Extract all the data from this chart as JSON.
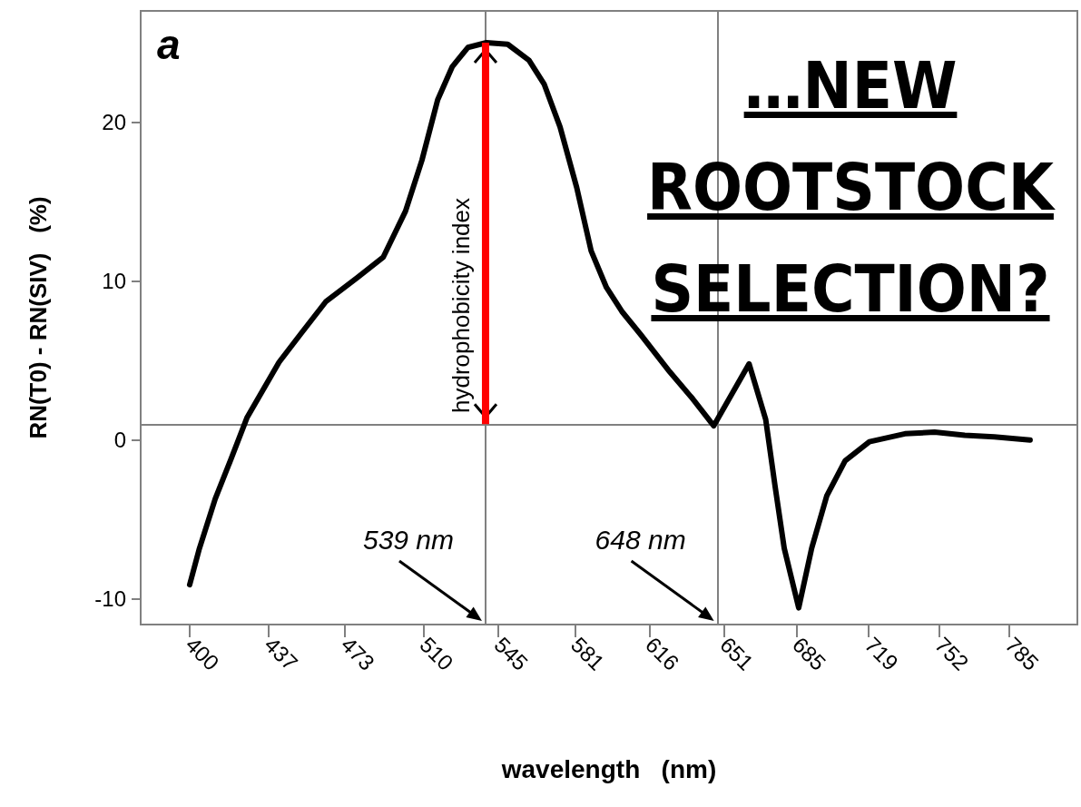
{
  "chart_data": {
    "type": "line",
    "xlabel": "wavelength   (nm)",
    "ylabel": "RN(T0) - RN(SIV)   (%)",
    "annotations": [
      "a",
      "…NEW\nROOTSTOCK\nSELECTION?",
      {
        "text": "hydrophobicity index",
        "x": 539,
        "y": 25
      }
    ],
    "x": [
      400,
      404.4,
      412,
      419.4,
      426.9,
      442,
      452.3,
      463.9,
      478.6,
      490.9,
      501.4,
      509.1,
      516.5,
      523.4,
      530.7,
      539.4,
      549.4,
      559.4,
      566.5,
      574,
      581.8,
      588.6,
      595.8,
      603,
      612.1,
      625.5,
      636.3,
      646.2,
      662.8,
      670.6,
      675,
      679.3,
      686.1,
      692.2,
      699.3,
      707.9,
      719.3,
      736,
      749.9,
      764.1,
      778,
      794.8
    ],
    "series": [
      {
        "color": "#000000",
        "values": [
          -9.1,
          -6.9,
          -3.7,
          -1.2,
          1.4,
          4.9,
          6.7,
          8.7,
          10.2,
          11.5,
          14.4,
          17.6,
          21.4,
          23.5,
          24.7,
          25.0,
          24.9,
          23.9,
          22.4,
          19.7,
          15.9,
          11.9,
          9.6,
          8.1,
          6.6,
          4.3,
          2.6,
          0.9,
          4.8,
          1.3,
          -2.9,
          -6.8,
          -10.55,
          -6.8,
          -3.5,
          -1.3,
          -0.1,
          0.4,
          0.5,
          0.3,
          0.2,
          0.0
        ]
      }
    ],
    "xlim": [
      377,
      817
    ],
    "xticks": [
      400,
      437,
      473,
      510,
      545,
      581,
      616,
      651,
      685,
      719,
      752,
      785
    ],
    "ylim": [
      -11.6,
      27
    ],
    "yticks": [
      -10,
      0,
      10,
      20
    ],
    "ref_lines": [
      {
        "axis": "x",
        "value": 539,
        "label": "539 nm",
        "color": "#808080"
      },
      {
        "axis": "x",
        "value": 648,
        "label": "648 nm",
        "color": "#808080"
      },
      {
        "axis": "y",
        "value": 1,
        "color": "#808080"
      }
    ],
    "marker": "none",
    "line_style": "solid",
    "grid": false
  }
}
